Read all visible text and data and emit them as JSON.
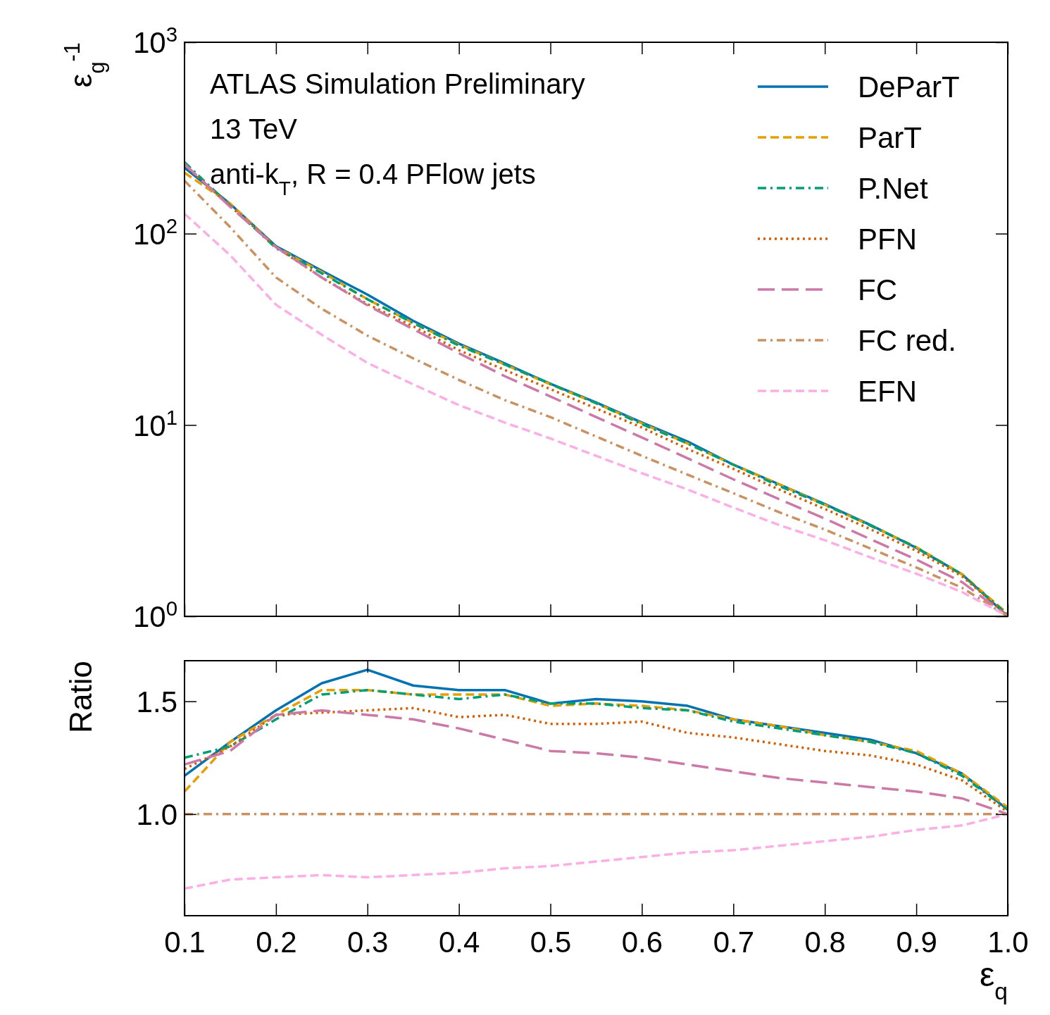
{
  "chart_data": [
    {
      "type": "line",
      "ylabel": "ε$_{g}$$^{-1}$",
      "log": "y",
      "legend": "top right",
      "tick_labels": "y",
      "grid": false,
      "annotations": [
        "ATLAS Simulation Preliminary",
        "13 TeV",
        "anti-k$_{T}$, R = 0.4 PFlow jets"
      ],
      "x": [
        0.1,
        0.15,
        0.2,
        0.25,
        0.3,
        0.35,
        0.4,
        0.45,
        0.5,
        0.55,
        0.6,
        0.65,
        0.7,
        0.75,
        0.8,
        0.85,
        0.9,
        0.95,
        1.0
      ],
      "xlim": [
        0.1,
        1.0
      ],
      "xticks": [
        0.1,
        0.2,
        0.3,
        0.4,
        0.5,
        0.6,
        0.7,
        0.8,
        0.9,
        1
      ],
      "ylim": [
        1,
        1000
      ],
      "yticks": [
        {
          "value": 1,
          "label": "10$^{0}$"
        },
        {
          "value": 10,
          "label": "10$^{1}$"
        },
        {
          "value": 100,
          "label": "10$^{2}$"
        },
        {
          "value": 1000,
          "label": "10$^{3}$"
        }
      ],
      "series": [
        {
          "name": "DeParT",
          "color": "#0072b2",
          "line_style": "solid",
          "values": [
            221,
            143,
            86,
            64,
            48,
            35,
            26.6,
            21,
            16.4,
            13.1,
            10.3,
            8.2,
            6.2,
            4.9,
            3.86,
            3.0,
            2.28,
            1.66,
            1.0
          ]
        },
        {
          "name": "ParT",
          "color": "#e69f00",
          "line_style": "dashed",
          "values": [
            208,
            143,
            85,
            63,
            45.4,
            34.1,
            26.3,
            20.7,
            16.3,
            13.0,
            10.2,
            8.0,
            6.2,
            4.9,
            3.83,
            2.98,
            2.3,
            1.66,
            1.03
          ]
        },
        {
          "name": "P.Net",
          "color": "#009e73",
          "line_style": "dashdot",
          "values": [
            236,
            140,
            84,
            62,
            45.4,
            34.1,
            26.0,
            20.7,
            16.4,
            13.0,
            10.1,
            8.0,
            6.2,
            4.8,
            3.83,
            2.98,
            2.29,
            1.65,
            1.02
          ]
        },
        {
          "name": "PFN",
          "color": "#d55e00",
          "line_style": "dotted",
          "values": [
            227,
            140,
            85,
            59,
            42.8,
            32.8,
            24.6,
            19.4,
            15.4,
            12.2,
            9.7,
            7.5,
            5.9,
            4.6,
            3.64,
            2.85,
            2.2,
            1.62,
            1.01
          ]
        },
        {
          "name": "FC",
          "color": "#cc79a7",
          "line_style": "longdash",
          "values": [
            231,
            138,
            85,
            59,
            42.2,
            31.7,
            23.7,
            18.0,
            14.1,
            11.0,
            8.6,
            6.7,
            5.2,
            4.1,
            3.24,
            2.53,
            1.98,
            1.51,
            1.0
          ]
        },
        {
          "name": "FC red.",
          "color": "#ca9161",
          "line_style": "dashdot",
          "values": [
            189,
            108,
            59,
            40.5,
            29.3,
            22.3,
            17.2,
            13.5,
            11.0,
            8.7,
            6.9,
            5.5,
            4.4,
            3.5,
            2.84,
            2.26,
            1.8,
            1.41,
            1.0
          ]
        },
        {
          "name": "EFN",
          "color": "#fbafe4",
          "line_style": "dashed",
          "values": [
            127,
            77,
            42.5,
            29.6,
            21.1,
            16.3,
            12.7,
            10.3,
            8.5,
            6.9,
            5.6,
            4.6,
            3.7,
            3.0,
            2.5,
            2.03,
            1.67,
            1.34,
            1.0
          ]
        }
      ]
    },
    {
      "type": "line",
      "xlabel": "ε$_{q}$",
      "ylabel": "Ratio",
      "grid": false,
      "x": [
        0.1,
        0.15,
        0.2,
        0.25,
        0.3,
        0.35,
        0.4,
        0.45,
        0.5,
        0.55,
        0.6,
        0.65,
        0.7,
        0.75,
        0.8,
        0.85,
        0.9,
        0.95,
        1.0
      ],
      "xlim": [
        0.1,
        1.0
      ],
      "xticks": [
        0.1,
        0.2,
        0.3,
        0.4,
        0.5,
        0.6,
        0.7,
        0.8,
        0.9,
        {
          "value": 1,
          "label": "1.0"
        }
      ],
      "ylim": [
        0.55,
        1.68
      ],
      "yticks": [
        {
          "value": 1,
          "label": "1.0"
        },
        1.5
      ],
      "series": [
        {
          "color": "#0072b2",
          "line_style": "solid",
          "values": [
            1.17,
            1.32,
            1.46,
            1.58,
            1.64,
            1.57,
            1.55,
            1.55,
            1.49,
            1.51,
            1.5,
            1.48,
            1.42,
            1.39,
            1.36,
            1.33,
            1.27,
            1.18,
            1.02
          ]
        },
        {
          "color": "#e69f00",
          "line_style": "dashed",
          "values": [
            1.1,
            1.32,
            1.44,
            1.55,
            1.55,
            1.53,
            1.53,
            1.53,
            1.48,
            1.49,
            1.48,
            1.46,
            1.42,
            1.39,
            1.35,
            1.32,
            1.28,
            1.18,
            1.03
          ]
        },
        {
          "color": "#009e73",
          "line_style": "dashdot",
          "values": [
            1.25,
            1.3,
            1.42,
            1.53,
            1.55,
            1.53,
            1.51,
            1.53,
            1.49,
            1.49,
            1.47,
            1.46,
            1.41,
            1.38,
            1.35,
            1.32,
            1.27,
            1.17,
            1.02
          ]
        },
        {
          "color": "#d55e00",
          "line_style": "dotted",
          "values": [
            1.2,
            1.3,
            1.44,
            1.45,
            1.46,
            1.47,
            1.43,
            1.44,
            1.4,
            1.4,
            1.41,
            1.36,
            1.34,
            1.31,
            1.28,
            1.26,
            1.22,
            1.15,
            1.01
          ]
        },
        {
          "color": "#cc79a7",
          "line_style": "longdash",
          "values": [
            1.22,
            1.28,
            1.44,
            1.46,
            1.44,
            1.42,
            1.38,
            1.33,
            1.28,
            1.27,
            1.25,
            1.22,
            1.19,
            1.16,
            1.14,
            1.12,
            1.1,
            1.07,
            1.0
          ]
        },
        {
          "color": "#ca9161",
          "line_style": "dashdot",
          "values": [
            1,
            1,
            1,
            1,
            1,
            1,
            1,
            1,
            1,
            1,
            1,
            1,
            1,
            1,
            1,
            1,
            1,
            1,
            1
          ]
        },
        {
          "color": "#fbafe4",
          "line_style": "dashed",
          "values": [
            0.67,
            0.71,
            0.72,
            0.73,
            0.72,
            0.73,
            0.74,
            0.76,
            0.77,
            0.79,
            0.81,
            0.83,
            0.84,
            0.86,
            0.88,
            0.9,
            0.93,
            0.95,
            1.0
          ]
        }
      ]
    }
  ]
}
